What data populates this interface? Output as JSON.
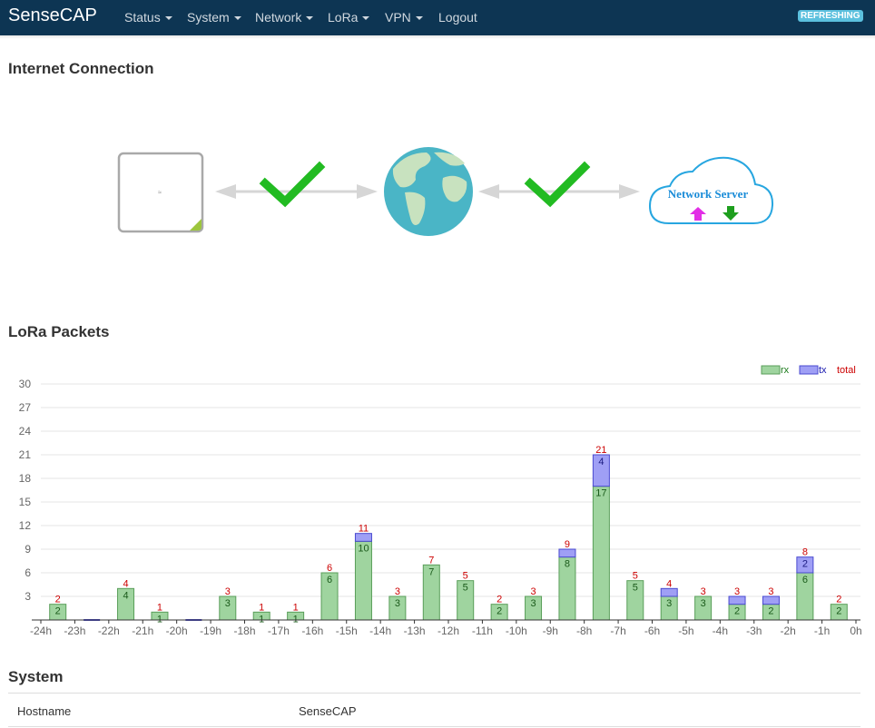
{
  "navbar": {
    "brand": "SenseCAP",
    "items": [
      {
        "label": "Status",
        "dropdown": true
      },
      {
        "label": "System",
        "dropdown": true
      },
      {
        "label": "Network",
        "dropdown": true
      },
      {
        "label": "LoRa",
        "dropdown": true
      },
      {
        "label": "VPN",
        "dropdown": true
      },
      {
        "label": "Logout",
        "dropdown": false
      }
    ],
    "status_badge": "REFRESHING"
  },
  "internet": {
    "title": "Internet Connection",
    "network_server_label": "Network Server",
    "link1_status": "ok",
    "link2_status": "ok"
  },
  "lora": {
    "title": "LoRa Packets",
    "legend": {
      "rx": "rx",
      "tx": "tx",
      "total": "total"
    }
  },
  "colors": {
    "navbar": "#0d3553",
    "rx_fill": "#9fd49f",
    "tx_fill": "#9f9ff5",
    "total_label": "#cc0000",
    "check": "#22bb22"
  },
  "chart_data": {
    "type": "bar",
    "stacked": true,
    "categories": [
      "-24h",
      "-23h",
      "-22h",
      "-21h",
      "-20h",
      "-19h",
      "-18h",
      "-17h",
      "-16h",
      "-15h",
      "-14h",
      "-13h",
      "-12h",
      "-11h",
      "-10h",
      "-9h",
      "-8h",
      "-7h",
      "-6h",
      "-5h",
      "-4h",
      "-3h",
      "-2h",
      "-1h"
    ],
    "x_ticks": [
      "-24h",
      "-23h",
      "-22h",
      "-21h",
      "-20h",
      "-19h",
      "-18h",
      "-17h",
      "-16h",
      "-15h",
      "-14h",
      "-13h",
      "-12h",
      "-11h",
      "-10h",
      "-9h",
      "-8h",
      "-7h",
      "-6h",
      "-5h",
      "-4h",
      "-3h",
      "-2h",
      "-1h",
      "0h"
    ],
    "series": [
      {
        "name": "rx",
        "values": [
          2,
          0,
          4,
          1,
          0,
          3,
          1,
          1,
          6,
          10,
          3,
          7,
          5,
          2,
          3,
          8,
          17,
          5,
          3,
          3,
          2,
          2,
          6,
          2
        ]
      },
      {
        "name": "tx",
        "values": [
          0,
          0,
          0,
          0,
          0,
          0,
          0,
          0,
          0,
          1,
          0,
          0,
          0,
          0,
          0,
          1,
          4,
          0,
          1,
          0,
          1,
          1,
          2,
          0
        ]
      }
    ],
    "totals": [
      2,
      0,
      4,
      1,
      0,
      3,
      1,
      1,
      6,
      11,
      3,
      7,
      5,
      2,
      3,
      9,
      21,
      5,
      4,
      3,
      3,
      3,
      8,
      2
    ],
    "y_ticks": [
      3,
      6,
      9,
      12,
      15,
      18,
      21,
      24,
      27,
      30
    ],
    "ylim": [
      0,
      30
    ],
    "legend_position": "top-right",
    "grid": true
  },
  "system": {
    "title": "System",
    "rows": [
      {
        "label": "Hostname",
        "value": "SenseCAP"
      }
    ]
  }
}
